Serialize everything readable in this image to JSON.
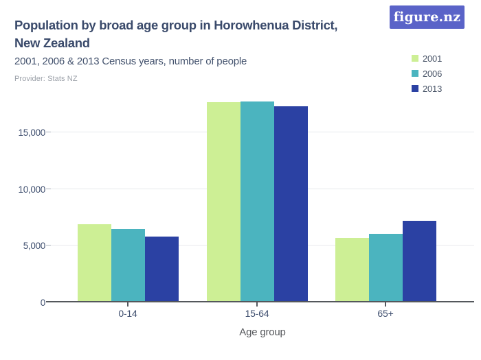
{
  "header": {
    "title_line1": "Population by broad age group in Horowhenua District,",
    "title_line2": "New Zealand",
    "subtitle": "2001, 2006 & 2013 Census years, number of people",
    "provider": "Provider: Stats NZ",
    "logo_text": "figure.nz"
  },
  "colors": {
    "logo_bg": "#5A63C8",
    "title_text": "#3A4A6B",
    "grid": "#E7E9EC",
    "baseline": "#54575C",
    "series_2001": "#CDEF95",
    "series_2006": "#4BB4BF",
    "series_2013": "#2B41A3"
  },
  "chart_data": {
    "type": "bar",
    "title": "Population by broad age group in Horowhenua District, New Zealand",
    "subtitle": "2001, 2006 & 2013 Census years, number of people",
    "categories": [
      "0-14",
      "15-64",
      "65+"
    ],
    "series": [
      {
        "name": "2001",
        "color": "#CDEF95",
        "values": [
          6750,
          17550,
          5550
        ]
      },
      {
        "name": "2006",
        "color": "#4BB4BF",
        "values": [
          6350,
          17600,
          5950
        ]
      },
      {
        "name": "2013",
        "color": "#2B41A3",
        "values": [
          5700,
          17150,
          7100
        ]
      }
    ],
    "xlabel": "Age group",
    "ylabel": "",
    "ylim": [
      0,
      18200
    ],
    "yticks": [
      0,
      5000,
      10000,
      15000
    ],
    "ytick_labels": [
      "0",
      "5,000",
      "10,000",
      "15,000"
    ],
    "grid": true,
    "legend_position": "top-right",
    "legend_entries": [
      "2001",
      "2006",
      "2013"
    ]
  }
}
